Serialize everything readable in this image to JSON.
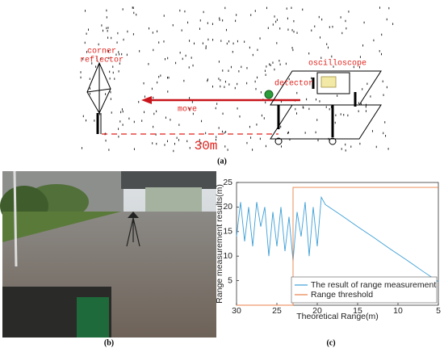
{
  "diagram": {
    "corner_reflector": [
      "corner",
      "reflector"
    ],
    "move": "move",
    "detector": "detector",
    "oscilloscope": "oscilloscope",
    "distance": "30m",
    "caption": "(a)"
  },
  "photo": {
    "caption": "(b)"
  },
  "chart_data": {
    "type": "line",
    "caption": "(c)",
    "x_label": "Theoretical Range(m)",
    "y_label": "Range measurement results(m)",
    "xlim": [
      30,
      5
    ],
    "xticks": [
      30,
      25,
      20,
      15,
      10,
      5
    ],
    "ylim": [
      0,
      25
    ],
    "yticks": [
      5,
      10,
      15,
      20,
      25
    ],
    "legend": "lower right",
    "series": [
      {
        "name": "The result of range measurement",
        "color": "#3e9fd6",
        "x": [
          30,
          29.5,
          29,
          28.5,
          28,
          27.5,
          27,
          26.5,
          26,
          25.5,
          25,
          24.5,
          24,
          23.5,
          23,
          22.5,
          22,
          21.5,
          21,
          20.5,
          20,
          19.5,
          19,
          17,
          15,
          13,
          11,
          9,
          7,
          5
        ],
        "values": [
          14,
          21,
          13,
          20,
          12,
          21,
          16,
          20,
          10,
          19,
          12,
          20,
          11,
          18,
          9,
          19,
          14,
          21,
          10,
          20,
          12,
          22,
          20.5,
          18.3,
          16,
          13.8,
          11.5,
          9.3,
          7,
          4.8
        ]
      },
      {
        "name": "Range threshold",
        "color": "#e8804a",
        "x": [
          30,
          23,
          23,
          5
        ],
        "values": [
          0,
          0,
          24,
          24
        ]
      }
    ]
  }
}
